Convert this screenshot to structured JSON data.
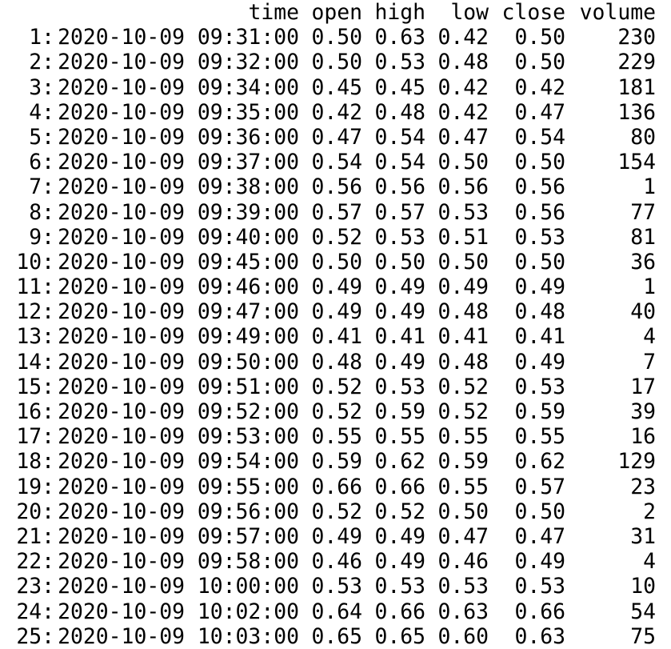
{
  "table": {
    "columns": [
      "time",
      "open",
      "high",
      "low",
      "close",
      "volume"
    ],
    "rows": [
      {
        "idx": "1:",
        "time": "2020-10-09 09:31:00",
        "open": "0.50",
        "high": "0.63",
        "low": "0.42",
        "close": "0.50",
        "volume": "230"
      },
      {
        "idx": "2:",
        "time": "2020-10-09 09:32:00",
        "open": "0.50",
        "high": "0.53",
        "low": "0.48",
        "close": "0.50",
        "volume": "229"
      },
      {
        "idx": "3:",
        "time": "2020-10-09 09:34:00",
        "open": "0.45",
        "high": "0.45",
        "low": "0.42",
        "close": "0.42",
        "volume": "181"
      },
      {
        "idx": "4:",
        "time": "2020-10-09 09:35:00",
        "open": "0.42",
        "high": "0.48",
        "low": "0.42",
        "close": "0.47",
        "volume": "136"
      },
      {
        "idx": "5:",
        "time": "2020-10-09 09:36:00",
        "open": "0.47",
        "high": "0.54",
        "low": "0.47",
        "close": "0.54",
        "volume": "80"
      },
      {
        "idx": "6:",
        "time": "2020-10-09 09:37:00",
        "open": "0.54",
        "high": "0.54",
        "low": "0.50",
        "close": "0.50",
        "volume": "154"
      },
      {
        "idx": "7:",
        "time": "2020-10-09 09:38:00",
        "open": "0.56",
        "high": "0.56",
        "low": "0.56",
        "close": "0.56",
        "volume": "1"
      },
      {
        "idx": "8:",
        "time": "2020-10-09 09:39:00",
        "open": "0.57",
        "high": "0.57",
        "low": "0.53",
        "close": "0.56",
        "volume": "77"
      },
      {
        "idx": "9:",
        "time": "2020-10-09 09:40:00",
        "open": "0.52",
        "high": "0.53",
        "low": "0.51",
        "close": "0.53",
        "volume": "81"
      },
      {
        "idx": "10:",
        "time": "2020-10-09 09:45:00",
        "open": "0.50",
        "high": "0.50",
        "low": "0.50",
        "close": "0.50",
        "volume": "36"
      },
      {
        "idx": "11:",
        "time": "2020-10-09 09:46:00",
        "open": "0.49",
        "high": "0.49",
        "low": "0.49",
        "close": "0.49",
        "volume": "1"
      },
      {
        "idx": "12:",
        "time": "2020-10-09 09:47:00",
        "open": "0.49",
        "high": "0.49",
        "low": "0.48",
        "close": "0.48",
        "volume": "40"
      },
      {
        "idx": "13:",
        "time": "2020-10-09 09:49:00",
        "open": "0.41",
        "high": "0.41",
        "low": "0.41",
        "close": "0.41",
        "volume": "4"
      },
      {
        "idx": "14:",
        "time": "2020-10-09 09:50:00",
        "open": "0.48",
        "high": "0.49",
        "low": "0.48",
        "close": "0.49",
        "volume": "7"
      },
      {
        "idx": "15:",
        "time": "2020-10-09 09:51:00",
        "open": "0.52",
        "high": "0.53",
        "low": "0.52",
        "close": "0.53",
        "volume": "17"
      },
      {
        "idx": "16:",
        "time": "2020-10-09 09:52:00",
        "open": "0.52",
        "high": "0.59",
        "low": "0.52",
        "close": "0.59",
        "volume": "39"
      },
      {
        "idx": "17:",
        "time": "2020-10-09 09:53:00",
        "open": "0.55",
        "high": "0.55",
        "low": "0.55",
        "close": "0.55",
        "volume": "16"
      },
      {
        "idx": "18:",
        "time": "2020-10-09 09:54:00",
        "open": "0.59",
        "high": "0.62",
        "low": "0.59",
        "close": "0.62",
        "volume": "129"
      },
      {
        "idx": "19:",
        "time": "2020-10-09 09:55:00",
        "open": "0.66",
        "high": "0.66",
        "low": "0.55",
        "close": "0.57",
        "volume": "23"
      },
      {
        "idx": "20:",
        "time": "2020-10-09 09:56:00",
        "open": "0.52",
        "high": "0.52",
        "low": "0.50",
        "close": "0.50",
        "volume": "2"
      },
      {
        "idx": "21:",
        "time": "2020-10-09 09:57:00",
        "open": "0.49",
        "high": "0.49",
        "low": "0.47",
        "close": "0.47",
        "volume": "31"
      },
      {
        "idx": "22:",
        "time": "2020-10-09 09:58:00",
        "open": "0.46",
        "high": "0.49",
        "low": "0.46",
        "close": "0.49",
        "volume": "4"
      },
      {
        "idx": "23:",
        "time": "2020-10-09 10:00:00",
        "open": "0.53",
        "high": "0.53",
        "low": "0.53",
        "close": "0.53",
        "volume": "10"
      },
      {
        "idx": "24:",
        "time": "2020-10-09 10:02:00",
        "open": "0.64",
        "high": "0.66",
        "low": "0.63",
        "close": "0.66",
        "volume": "54"
      },
      {
        "idx": "25:",
        "time": "2020-10-09 10:03:00",
        "open": "0.65",
        "high": "0.65",
        "low": "0.60",
        "close": "0.63",
        "volume": "75"
      }
    ]
  }
}
